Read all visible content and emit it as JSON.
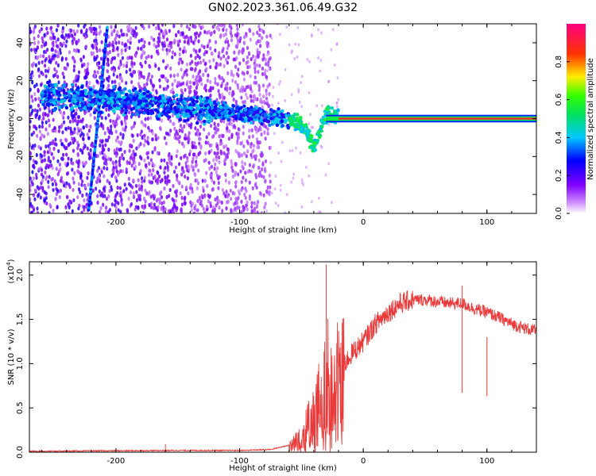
{
  "title": "GN02.2023.361.06.49.G32",
  "chart_data": [
    {
      "type": "heatmap",
      "xlabel": "Height of straight line (km)",
      "ylabel": "Frequency (Hz)",
      "xlim": [
        -270,
        140
      ],
      "ylim": [
        -50,
        50
      ],
      "x_ticks": [
        -200,
        -100,
        0,
        100
      ],
      "x_tick_labels": [
        "-200",
        "-100",
        "0",
        "100"
      ],
      "y_ticks": [
        -40,
        -20,
        0,
        20,
        40
      ],
      "y_tick_labels": [
        "-40",
        "-20",
        "0",
        "20",
        "40"
      ],
      "colorbar": {
        "label": "Normalized spectral amplitude",
        "range": [
          0,
          1
        ],
        "ticks": [
          0.0,
          0.2,
          0.4,
          0.6,
          0.8
        ],
        "tick_labels": [
          "0.0",
          "0.2",
          "0.4",
          "0.6",
          "0.8"
        ],
        "colormap": "rainbow: white, violet, blue, cyan, green, yellow, red, magenta"
      },
      "features": {
        "dominant_line": {
          "frequency": 0,
          "x_range": [
            -30,
            140
          ],
          "amplitude": 1.0
        },
        "converging_trace": {
          "points": [
            [
              -260,
              12
            ],
            [
              -200,
              10
            ],
            [
              -150,
              6
            ],
            [
              -100,
              3
            ],
            [
              -70,
              1
            ],
            [
              -50,
              -3
            ],
            [
              -45,
              -8
            ],
            [
              -40,
              -15
            ],
            [
              -30,
              2
            ],
            [
              -20,
              1
            ]
          ]
        },
        "diagonal_streak": {
          "from": [
            -222,
            -48
          ],
          "to": [
            -207,
            48
          ]
        },
        "noise_region": {
          "x_range": [
            -270,
            -80
          ]
        }
      },
      "grid": false,
      "legend": "none"
    },
    {
      "type": "line",
      "xlabel": "Height of straight line (km)",
      "ylabel": "SNR (10 * v/v)",
      "y_multiplier_label": "(x10",
      "y_multiplier_exp": "4",
      "y_multiplier_close": ")",
      "xlim": [
        -270,
        140
      ],
      "ylim": [
        0.0,
        2.15
      ],
      "x_ticks": [
        -200,
        -100,
        0,
        100
      ],
      "x_tick_labels": [
        "-200",
        "-100",
        "0",
        "100"
      ],
      "y_ticks": [
        0.0,
        0.5,
        1.0,
        1.5,
        2.0
      ],
      "y_tick_labels": [
        "0.0",
        "0.5",
        "1.0",
        "1.5",
        "2.0"
      ],
      "color": "#e83a3a",
      "series": [
        {
          "envelope": [
            [
              -270,
              0.01
            ],
            [
              -220,
              0.015
            ],
            [
              -150,
              0.02
            ],
            [
              -100,
              0.02
            ],
            [
              -75,
              0.03
            ],
            [
              -60,
              0.08
            ],
            [
              -50,
              0.2
            ],
            [
              -40,
              0.4
            ],
            [
              -35,
              0.6
            ],
            [
              -30,
              0.8
            ],
            [
              -20,
              0.9
            ],
            [
              -10,
              1.1
            ],
            [
              0,
              1.25
            ],
            [
              10,
              1.45
            ],
            [
              20,
              1.58
            ],
            [
              30,
              1.68
            ],
            [
              40,
              1.72
            ],
            [
              50,
              1.72
            ],
            [
              60,
              1.7
            ],
            [
              70,
              1.68
            ],
            [
              80,
              1.68
            ],
            [
              90,
              1.62
            ],
            [
              100,
              1.58
            ],
            [
              110,
              1.52
            ],
            [
              120,
              1.45
            ],
            [
              130,
              1.4
            ],
            [
              140,
              1.37
            ]
          ],
          "spikes": [
            [
              -30,
              2.12
            ],
            [
              -160,
              0.09
            ],
            [
              80,
              1.88
            ],
            [
              100,
              1.3
            ]
          ]
        }
      ],
      "grid": false,
      "legend": "none"
    }
  ]
}
